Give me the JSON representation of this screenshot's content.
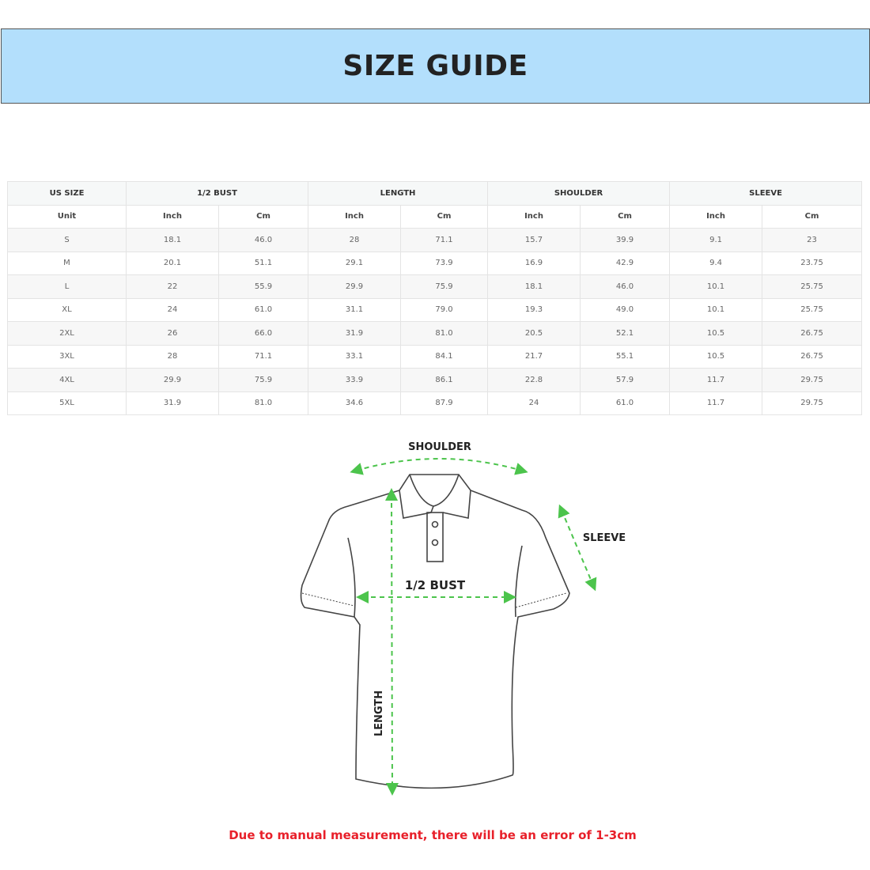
{
  "title": "SIZE GUIDE",
  "table": {
    "groups": [
      "US SIZE",
      "1/2 BUST",
      "LENGTH",
      "SHOULDER",
      "SLEEVE"
    ],
    "units": [
      "Unit",
      "Inch",
      "Cm",
      "Inch",
      "Cm",
      "Inch",
      "Cm",
      "Inch",
      "Cm"
    ],
    "rows": [
      [
        "S",
        "18.1",
        "46.0",
        "28",
        "71.1",
        "15.7",
        "39.9",
        "9.1",
        "23"
      ],
      [
        "M",
        "20.1",
        "51.1",
        "29.1",
        "73.9",
        "16.9",
        "42.9",
        "9.4",
        "23.75"
      ],
      [
        "L",
        "22",
        "55.9",
        "29.9",
        "75.9",
        "18.1",
        "46.0",
        "10.1",
        "25.75"
      ],
      [
        "XL",
        "24",
        "61.0",
        "31.1",
        "79.0",
        "19.3",
        "49.0",
        "10.1",
        "25.75"
      ],
      [
        "2XL",
        "26",
        "66.0",
        "31.9",
        "81.0",
        "20.5",
        "52.1",
        "10.5",
        "26.75"
      ],
      [
        "3XL",
        "28",
        "71.1",
        "33.1",
        "84.1",
        "21.7",
        "55.1",
        "10.5",
        "26.75"
      ],
      [
        "4XL",
        "29.9",
        "75.9",
        "33.9",
        "86.1",
        "22.8",
        "57.9",
        "11.7",
        "29.75"
      ],
      [
        "5XL",
        "31.9",
        "81.0",
        "34.6",
        "87.9",
        "24",
        "61.0",
        "11.7",
        "29.75"
      ]
    ]
  },
  "diagram": {
    "shoulder": "SHOULDER",
    "sleeve": "SLEEVE",
    "bust": "1/2 BUST",
    "length": "LENGTH",
    "arrow_color": "#4cc44c"
  },
  "note": "Due to manual measurement, there will be an error of 1-3cm"
}
